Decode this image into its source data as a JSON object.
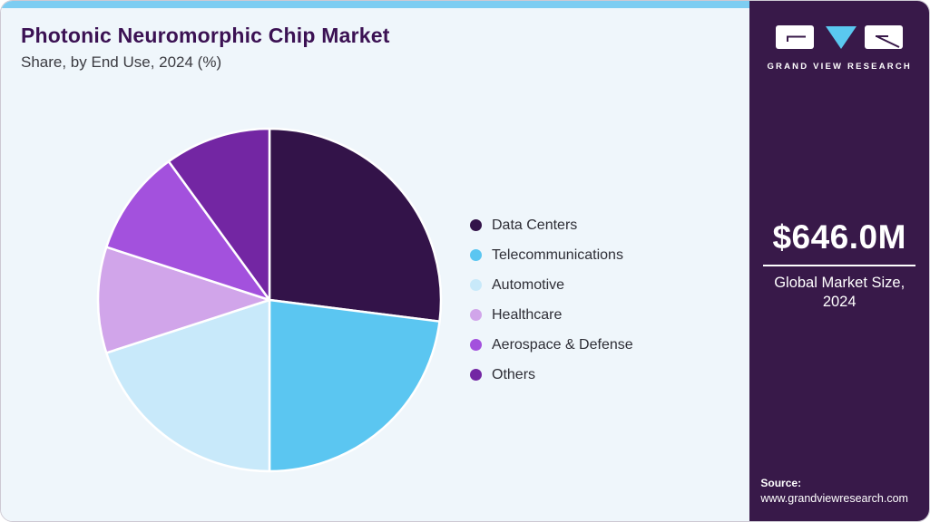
{
  "header": {
    "title": "Photonic Neuromorphic Chip Market",
    "subtitle": "Share, by End Use, 2024 (%)"
  },
  "chart_data": {
    "type": "pie",
    "title": "Photonic Neuromorphic Chip Market Share, by End Use, 2024 (%)",
    "unit": "%",
    "start_angle_deg": 0,
    "direction": "clockwise",
    "legend_position": "right",
    "slices": [
      {
        "label": "Data Centers",
        "value": 27,
        "color": "#331349"
      },
      {
        "label": "Telecommunications",
        "value": 23,
        "color": "#5BC6F1"
      },
      {
        "label": "Automotive",
        "value": 20,
        "color": "#C8E9FA"
      },
      {
        "label": "Healthcare",
        "value": 10,
        "color": "#D1A5EA"
      },
      {
        "label": "Aerospace & Defense",
        "value": 10,
        "color": "#A351DD"
      },
      {
        "label": "Others",
        "value": 10,
        "color": "#7326A3"
      }
    ]
  },
  "sidebar": {
    "logo_text": "GRAND VIEW RESEARCH",
    "market_size_value": "$646.0M",
    "market_size_label": "Global Market Size,\n2024",
    "source_label": "Source:",
    "source_url": "www.grandviewresearch.com"
  },
  "colors": {
    "top_bar": "#7DCDF2",
    "card_background": "#EFF6FB",
    "sidebar_background": "#381949",
    "title_text": "#3B1153",
    "logo_triangle": "#5AC8F0",
    "slice_border": "#FFFFFF"
  }
}
